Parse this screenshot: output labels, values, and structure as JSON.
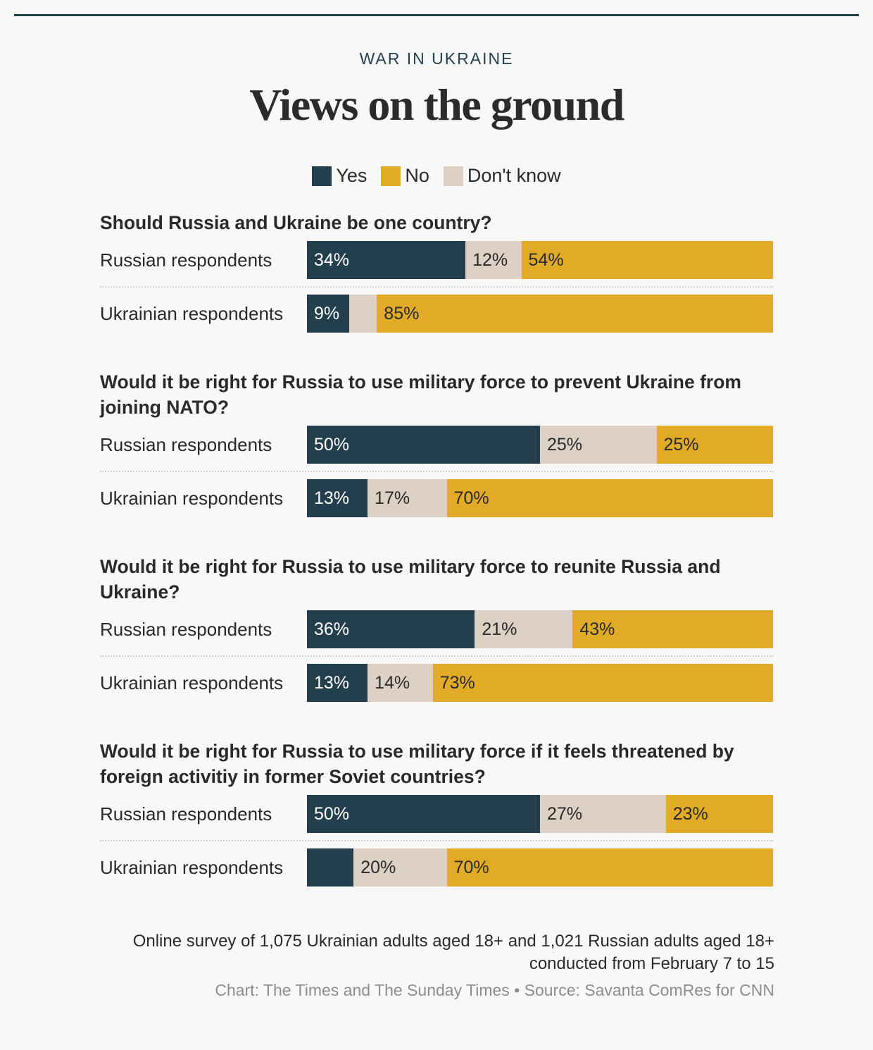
{
  "header": {
    "kicker": "WAR IN UKRAINE",
    "title": "Views on the ground"
  },
  "legend": [
    {
      "label": "Yes",
      "color": "#233f4e"
    },
    {
      "label": "No",
      "color": "#e1aa27"
    },
    {
      "label": "Don't know",
      "color": "#dcd1c4"
    }
  ],
  "chart_data": {
    "type": "bar",
    "stacked": true,
    "orientation": "horizontal",
    "title": "Views on the ground",
    "series_order": [
      "Yes",
      "Don't know",
      "No"
    ],
    "questions": [
      {
        "question": "Should Russia and Ukraine be one country?",
        "rows": [
          {
            "label": "Russian respondents",
            "yes": 34,
            "dk": 12,
            "no": 54,
            "yes_label": "34%",
            "dk_label": "12%",
            "no_label": "54%"
          },
          {
            "label": "Ukrainian respondents",
            "yes": 9,
            "dk": 6,
            "no": 85,
            "yes_label": "9%",
            "dk_label": "",
            "no_label": "85%"
          }
        ]
      },
      {
        "question": "Would it be right for Russia to use military force to prevent Ukraine from joining NATO?",
        "rows": [
          {
            "label": "Russian respondents",
            "yes": 50,
            "dk": 25,
            "no": 25,
            "yes_label": "50%",
            "dk_label": "25%",
            "no_label": "25%"
          },
          {
            "label": "Ukrainian respondents",
            "yes": 13,
            "dk": 17,
            "no": 70,
            "yes_label": "13%",
            "dk_label": "17%",
            "no_label": "70%"
          }
        ]
      },
      {
        "question": "Would it be right for Russia to use military force to reunite Russia and Ukraine?",
        "rows": [
          {
            "label": "Russian respondents",
            "yes": 36,
            "dk": 21,
            "no": 43,
            "yes_label": "36%",
            "dk_label": "21%",
            "no_label": "43%"
          },
          {
            "label": "Ukrainian respondents",
            "yes": 13,
            "dk": 14,
            "no": 73,
            "yes_label": "13%",
            "dk_label": "14%",
            "no_label": "73%"
          }
        ]
      },
      {
        "question": "Would it be right for Russia to use military force if it feels threatened by foreign activitiy in former Soviet countries?",
        "rows": [
          {
            "label": "Russian respondents",
            "yes": 50,
            "dk": 27,
            "no": 23,
            "yes_label": "50%",
            "dk_label": "27%",
            "no_label": "23%"
          },
          {
            "label": "Ukrainian respondents",
            "yes": 10,
            "dk": 20,
            "no": 70,
            "yes_label": "",
            "dk_label": "20%",
            "no_label": "70%"
          }
        ]
      }
    ]
  },
  "footer": {
    "note": "Online survey of 1,075 Ukrainian adults aged 18+ and 1,021 Russian adults aged 18+ conducted from February 7 to 15",
    "source": "Chart: The Times and The Sunday Times • Source: Savanta ComRes for CNN"
  }
}
